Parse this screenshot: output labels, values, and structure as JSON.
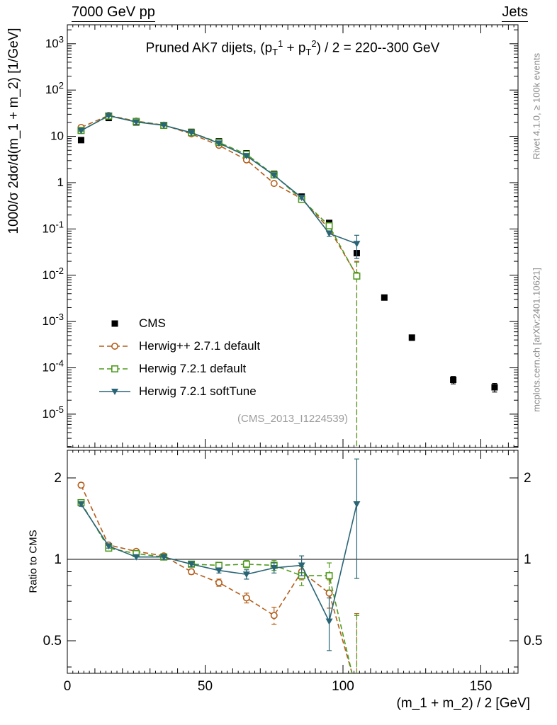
{
  "header": {
    "left": "7000 GeV pp",
    "right": "Jets"
  },
  "side_labels": {
    "top": "Rivet 4.1.0, ≥ 100k events",
    "bottom": "mcplots.cern.ch [arXiv:2401.10621]"
  },
  "watermark": "(CMS_2013_I1224539)",
  "chart_data": {
    "type": "line",
    "title": "Pruned AK7 dijets, (p_T^1 + p_T^2) / 2 = 220--300 GeV",
    "title_segments": [
      "Pruned AK7 dijets, (p",
      "T",
      "1",
      " + p",
      "T",
      "2",
      ") / 2 = 220--300 GeV"
    ],
    "xlabel": "(m_1 + m_2) / 2 [GeV]",
    "ylabel": "1000/σ  2dσ/d(m_1 + m_2) [1/GeV]",
    "ratio_label": "Ratio to CMS",
    "x_range": [
      0,
      163.5
    ],
    "y_log_range": [
      -5.72,
      3.41
    ],
    "ratio_range": [
      0.379,
      2.53
    ],
    "x_ticks": [
      0,
      50,
      100,
      150
    ],
    "y_tick_exponents": [
      -5,
      -4,
      -3,
      -2,
      -1,
      0,
      1,
      2,
      3
    ],
    "ratio_ticks": [
      "0.5",
      "1",
      "2"
    ],
    "ratio_tick_values": [
      0.5,
      1,
      2
    ],
    "ratio_minor_ticks": [
      0.4,
      0.6,
      0.7,
      0.8,
      0.9
    ],
    "grid": false,
    "legend_position": "inside-left-bottom",
    "series": [
      {
        "name": "CMS",
        "color": "#000000",
        "marker": "square-filled",
        "line": "none",
        "x": [
          5,
          15,
          25,
          35,
          45,
          55,
          65,
          75,
          85,
          95,
          105,
          115,
          125,
          140,
          155
        ],
        "y": [
          8.3,
          25,
          20,
          17,
          12.5,
          7.8,
          4.3,
          1.55,
          0.5,
          0.135,
          0.03,
          0.0033,
          0.00045,
          5.5e-05,
          3.8e-05
        ],
        "yerr": [
          0.4,
          0.8,
          0.6,
          0.5,
          0.4,
          0.25,
          0.15,
          0.06,
          0.025,
          0.008,
          0.003,
          0.0004,
          6e-05,
          1e-05,
          8e-06
        ]
      },
      {
        "name": "Herwig++ 2.7.1 default",
        "color": "#b45e1c",
        "marker": "circle-open",
        "line": "dashed",
        "x": [
          5,
          15,
          25,
          35,
          45,
          55,
          65,
          75,
          85,
          95,
          105
        ],
        "y": [
          15.6,
          28.3,
          21.4,
          17.5,
          11.3,
          6.4,
          3.1,
          0.96,
          0.45,
          0.101,
          0.01
        ],
        "yerr": [
          0.4,
          0.5,
          0.4,
          0.3,
          0.25,
          0.15,
          0.1,
          0.05,
          0.03,
          0.012,
          0.01
        ],
        "ratio": [
          1.88,
          1.13,
          1.07,
          1.03,
          0.9,
          0.82,
          0.72,
          0.62,
          0.9,
          0.75,
          0.33
        ],
        "ratio_err": [
          0.04,
          0.02,
          0.02,
          0.02,
          0.02,
          0.025,
          0.03,
          0.045,
          0.06,
          0.09,
          0.3
        ]
      },
      {
        "name": "Herwig 7.2.1 default",
        "color": "#4e9a1e",
        "marker": "square-open",
        "line": "dashed",
        "x": [
          5,
          15,
          25,
          35,
          45,
          55,
          65,
          75,
          85,
          95,
          105
        ],
        "y": [
          13.4,
          27.5,
          21.0,
          17.3,
          12.0,
          7.4,
          4.1,
          1.47,
          0.435,
          0.117,
          0.0096
        ],
        "yerr": [
          0.35,
          0.5,
          0.4,
          0.3,
          0.25,
          0.15,
          0.1,
          0.05,
          0.03,
          0.013,
          0.0096
        ],
        "ratio": [
          1.62,
          1.1,
          1.05,
          1.02,
          0.96,
          0.95,
          0.96,
          0.95,
          0.87,
          0.87,
          0.32
        ],
        "ratio_err": [
          0.03,
          0.02,
          0.02,
          0.02,
          0.02,
          0.02,
          0.03,
          0.04,
          0.07,
          0.1,
          0.3
        ]
      },
      {
        "name": "Herwig 7.2.1 softTune",
        "color": "#2a6576",
        "marker": "triangle-down-filled",
        "line": "solid",
        "x": [
          5,
          15,
          25,
          35,
          45,
          55,
          65,
          75,
          85,
          95,
          105
        ],
        "y": [
          13.3,
          28.0,
          20.4,
          17.3,
          12.0,
          7.1,
          3.8,
          1.44,
          0.475,
          0.08,
          0.048
        ],
        "yerr": [
          0.35,
          0.5,
          0.4,
          0.3,
          0.25,
          0.15,
          0.1,
          0.05,
          0.03,
          0.011,
          0.025
        ],
        "ratio": [
          1.6,
          1.12,
          1.02,
          1.02,
          0.96,
          0.91,
          0.88,
          0.93,
          0.95,
          0.59,
          1.6
        ],
        "ratio_err": [
          0.03,
          0.02,
          0.02,
          0.02,
          0.02,
          0.02,
          0.035,
          0.04,
          0.08,
          0.13,
          0.75
        ]
      }
    ]
  }
}
